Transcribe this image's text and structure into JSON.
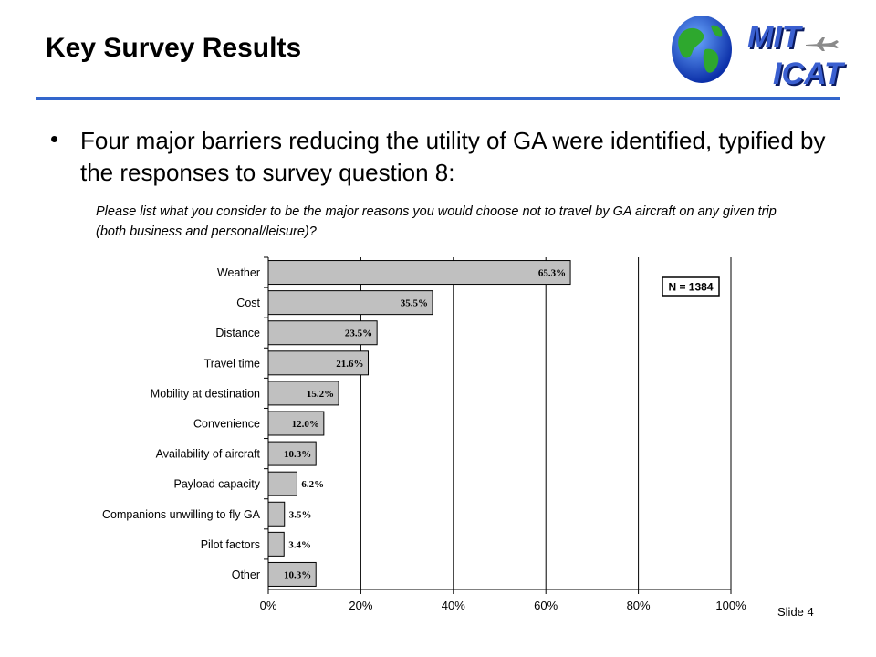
{
  "slide": {
    "title": "Key Survey Results",
    "bullet": "Four major barriers reducing the utility of GA were identified, typified by the responses to survey question 8:",
    "question": "Please list what you consider to be the major reasons you would choose not to travel by GA aircraft on any given trip (both business and personal/leisure)?",
    "slide_number": "Slide 4",
    "accent_color": "#3366cc"
  },
  "logo": {
    "line1": "MIT",
    "line2": "ICAT",
    "icons": [
      "globe-icon",
      "airplane-icon"
    ]
  },
  "chart_data": {
    "type": "bar",
    "orientation": "horizontal",
    "categories": [
      "Weather",
      "Cost",
      "Distance",
      "Travel time",
      "Mobility at destination",
      "Convenience",
      "Availability of aircraft",
      "Payload capacity",
      "Companions unwilling to fly GA",
      "Pilot factors",
      "Other"
    ],
    "values": [
      65.3,
      35.5,
      23.5,
      21.6,
      15.2,
      12.0,
      10.3,
      6.2,
      3.5,
      3.4,
      10.3
    ],
    "value_labels": [
      "65.3%",
      "35.5%",
      "23.5%",
      "21.6%",
      "15.2%",
      "12.0%",
      "10.3%",
      "6.2%",
      "3.5%",
      "3.4%",
      "10.3%"
    ],
    "xlim": [
      0,
      100
    ],
    "x_ticks": [
      "0%",
      "20%",
      "40%",
      "60%",
      "80%",
      "100%"
    ],
    "grid": true,
    "annotation": "N = 1384",
    "bar_color": "#c0c0c0",
    "title": "",
    "xlabel": "",
    "ylabel": ""
  }
}
